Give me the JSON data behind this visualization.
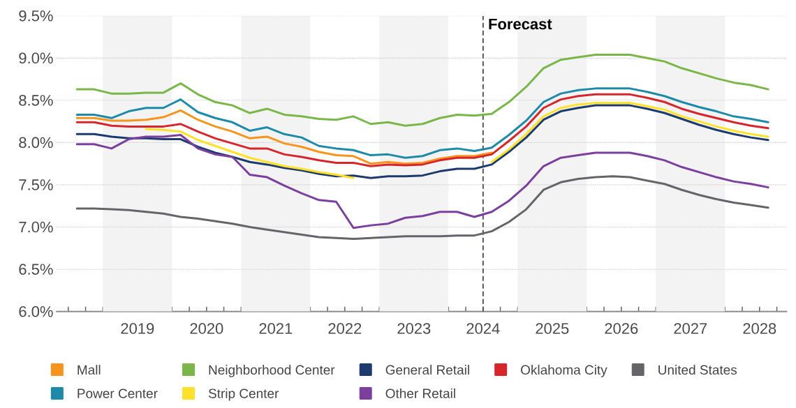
{
  "chart_data": {
    "type": "line",
    "x": [
      2018.625,
      2018.875,
      2019.125,
      2019.375,
      2019.625,
      2019.875,
      2020.125,
      2020.375,
      2020.625,
      2020.875,
      2021.125,
      2021.375,
      2021.625,
      2021.875,
      2022.125,
      2022.375,
      2022.625,
      2022.875,
      2023.125,
      2023.375,
      2023.625,
      2023.875,
      2024.125,
      2024.375,
      2024.625,
      2024.875,
      2025.125,
      2025.375,
      2025.625,
      2025.875,
      2026.125,
      2026.375,
      2026.625,
      2026.875,
      2027.125,
      2027.375,
      2027.625,
      2027.875,
      2028.125,
      2028.375,
      2028.625
    ],
    "series": [
      {
        "name": "Mall",
        "color": "#f7941e",
        "values": [
          8.29,
          8.29,
          8.26,
          8.26,
          8.27,
          8.3,
          8.38,
          8.27,
          8.19,
          8.13,
          8.05,
          8.07,
          7.99,
          7.95,
          7.89,
          7.85,
          7.84,
          7.75,
          7.77,
          7.75,
          7.76,
          7.81,
          7.84,
          7.84,
          7.88,
          null,
          null,
          null,
          null,
          null,
          null,
          null,
          null,
          null,
          null,
          null,
          null,
          null,
          null,
          null,
          null
        ]
      },
      {
        "name": "Neighborhood Center",
        "color": "#7ab648",
        "values": [
          8.63,
          8.63,
          8.58,
          8.58,
          8.59,
          8.59,
          8.7,
          8.57,
          8.48,
          8.44,
          8.35,
          8.4,
          8.33,
          8.31,
          8.28,
          8.27,
          8.31,
          8.22,
          8.24,
          8.2,
          8.22,
          8.29,
          8.33,
          8.32,
          8.34,
          8.48,
          8.66,
          8.88,
          8.98,
          9.01,
          9.04,
          9.04,
          9.04,
          9.0,
          8.96,
          8.88,
          8.82,
          8.76,
          8.71,
          8.68,
          8.63
        ]
      },
      {
        "name": "General Retail",
        "color": "#1c3a6e",
        "values": [
          8.1,
          8.1,
          8.07,
          8.05,
          8.05,
          8.04,
          8.04,
          7.95,
          7.88,
          7.83,
          7.77,
          7.74,
          7.7,
          7.67,
          7.63,
          7.6,
          7.61,
          7.58,
          7.6,
          7.6,
          7.61,
          7.66,
          7.69,
          7.69,
          7.74,
          7.89,
          8.06,
          8.27,
          8.37,
          8.41,
          8.44,
          8.44,
          8.44,
          8.4,
          8.35,
          8.28,
          8.21,
          8.15,
          8.1,
          8.06,
          8.03
        ]
      },
      {
        "name": "Oklahoma City",
        "color": "#d7262b",
        "values": [
          8.24,
          8.24,
          8.2,
          8.19,
          8.19,
          8.19,
          8.22,
          8.13,
          8.05,
          7.99,
          7.93,
          7.93,
          7.86,
          7.83,
          7.79,
          7.76,
          7.76,
          7.72,
          7.74,
          7.73,
          7.74,
          7.79,
          7.82,
          7.82,
          7.86,
          8.02,
          8.19,
          8.41,
          8.51,
          8.55,
          8.57,
          8.57,
          8.57,
          8.53,
          8.48,
          8.4,
          8.34,
          8.29,
          8.24,
          8.2,
          8.17
        ]
      },
      {
        "name": "United States",
        "color": "#646569",
        "values": [
          7.22,
          7.22,
          7.21,
          7.2,
          7.18,
          7.16,
          7.12,
          7.1,
          7.07,
          7.04,
          7.0,
          6.97,
          6.94,
          6.91,
          6.88,
          6.87,
          6.86,
          6.87,
          6.88,
          6.89,
          6.89,
          6.89,
          6.9,
          6.9,
          6.95,
          7.06,
          7.21,
          7.44,
          7.53,
          7.57,
          7.59,
          7.6,
          7.59,
          7.55,
          7.51,
          7.44,
          7.38,
          7.33,
          7.29,
          7.26,
          7.23
        ]
      },
      {
        "name": "Power Center",
        "color": "#1c8aa8",
        "values": [
          8.33,
          8.33,
          8.29,
          8.37,
          8.41,
          8.41,
          8.51,
          8.36,
          8.29,
          8.24,
          8.14,
          8.18,
          8.1,
          8.06,
          7.96,
          7.93,
          7.91,
          7.85,
          7.86,
          7.82,
          7.84,
          7.91,
          7.93,
          7.9,
          7.94,
          8.09,
          8.26,
          8.48,
          8.58,
          8.62,
          8.64,
          8.64,
          8.64,
          8.6,
          8.55,
          8.48,
          8.42,
          8.37,
          8.31,
          8.28,
          8.24
        ]
      },
      {
        "name": "Strip Center",
        "color": "#fde12a",
        "values": [
          null,
          null,
          null,
          null,
          8.16,
          8.15,
          8.13,
          8.03,
          7.96,
          7.89,
          7.82,
          7.77,
          7.72,
          7.69,
          7.65,
          7.62,
          7.58,
          null,
          null,
          null,
          null,
          null,
          null,
          null,
          7.77,
          7.92,
          8.1,
          8.31,
          8.41,
          8.45,
          8.47,
          8.47,
          8.47,
          8.43,
          8.39,
          8.31,
          8.25,
          8.19,
          8.14,
          8.1,
          8.07
        ]
      },
      {
        "name": "Other Retail",
        "color": "#7b3f9e",
        "values": [
          7.98,
          7.98,
          7.93,
          8.04,
          8.07,
          8.07,
          8.09,
          7.93,
          7.86,
          7.83,
          7.62,
          7.59,
          7.49,
          7.4,
          7.32,
          7.3,
          6.99,
          7.02,
          7.04,
          7.11,
          7.13,
          7.18,
          7.18,
          7.12,
          7.18,
          7.31,
          7.49,
          7.72,
          7.82,
          7.85,
          7.88,
          7.88,
          7.88,
          7.84,
          7.79,
          7.71,
          7.65,
          7.59,
          7.54,
          7.51,
          7.47
        ]
      }
    ],
    "xlim": [
      2018.32,
      2028.9
    ],
    "xticks": [
      {
        "value": 2018.5,
        "label": null
      },
      {
        "value": 2018.75,
        "label": null
      },
      {
        "value": 2019,
        "label": null
      },
      {
        "value": 2019.25,
        "label": null
      },
      {
        "value": 2019.5,
        "label": "2019"
      },
      {
        "value": 2019.75,
        "label": null
      },
      {
        "value": 2020,
        "label": null
      },
      {
        "value": 2020.25,
        "label": null
      },
      {
        "value": 2020.5,
        "label": "2020"
      },
      {
        "value": 2020.75,
        "label": null
      },
      {
        "value": 2021,
        "label": null
      },
      {
        "value": 2021.25,
        "label": null
      },
      {
        "value": 2021.5,
        "label": "2021"
      },
      {
        "value": 2021.75,
        "label": null
      },
      {
        "value": 2022,
        "label": null
      },
      {
        "value": 2022.25,
        "label": null
      },
      {
        "value": 2022.5,
        "label": "2022"
      },
      {
        "value": 2022.75,
        "label": null
      },
      {
        "value": 2023,
        "label": null
      },
      {
        "value": 2023.25,
        "label": null
      },
      {
        "value": 2023.5,
        "label": "2023"
      },
      {
        "value": 2023.75,
        "label": null
      },
      {
        "value": 2024,
        "label": null
      },
      {
        "value": 2024.25,
        "label": null
      },
      {
        "value": 2024.5,
        "label": "2024"
      },
      {
        "value": 2024.75,
        "label": null
      },
      {
        "value": 2025,
        "label": null
      },
      {
        "value": 2025.25,
        "label": null
      },
      {
        "value": 2025.5,
        "label": "2025"
      },
      {
        "value": 2025.75,
        "label": null
      },
      {
        "value": 2026,
        "label": null
      },
      {
        "value": 2026.25,
        "label": null
      },
      {
        "value": 2026.5,
        "label": "2026"
      },
      {
        "value": 2026.75,
        "label": null
      },
      {
        "value": 2027,
        "label": null
      },
      {
        "value": 2027.25,
        "label": null
      },
      {
        "value": 2027.5,
        "label": "2027"
      },
      {
        "value": 2027.75,
        "label": null
      },
      {
        "value": 2028,
        "label": null
      },
      {
        "value": 2028.25,
        "label": null
      },
      {
        "value": 2028.5,
        "label": "2028"
      },
      {
        "value": 2028.75,
        "label": null
      }
    ],
    "ylim": [
      6.0,
      9.5
    ],
    "yticks": [
      {
        "value": 6.0,
        "label": "6.0%"
      },
      {
        "value": 6.5,
        "label": "6.5%"
      },
      {
        "value": 7.0,
        "label": "7.0%"
      },
      {
        "value": 7.5,
        "label": "7.5%"
      },
      {
        "value": 8.0,
        "label": "8.0%"
      },
      {
        "value": 8.5,
        "label": "8.5%"
      },
      {
        "value": 9.0,
        "label": "9.0%"
      },
      {
        "value": 9.5,
        "label": "9.5%"
      }
    ],
    "grid": "y",
    "legend": "bottom",
    "bands": [
      {
        "axis": "x",
        "from": 2019,
        "to": 2020,
        "color": "#f3f3f3"
      },
      {
        "axis": "x",
        "from": 2021,
        "to": 2022,
        "color": "#f3f3f3"
      },
      {
        "axis": "x",
        "from": 2023,
        "to": 2024,
        "color": "#f3f3f3"
      },
      {
        "axis": "x",
        "from": 2025,
        "to": 2026,
        "color": "#f3f3f3"
      },
      {
        "axis": "x",
        "from": 2027,
        "to": 2028,
        "color": "#f3f3f3"
      }
    ],
    "ref_lines": [
      {
        "axis": "x",
        "value": 2024.5,
        "label": "Forecast",
        "color": "#505050",
        "line_style": "dashed"
      }
    ]
  }
}
